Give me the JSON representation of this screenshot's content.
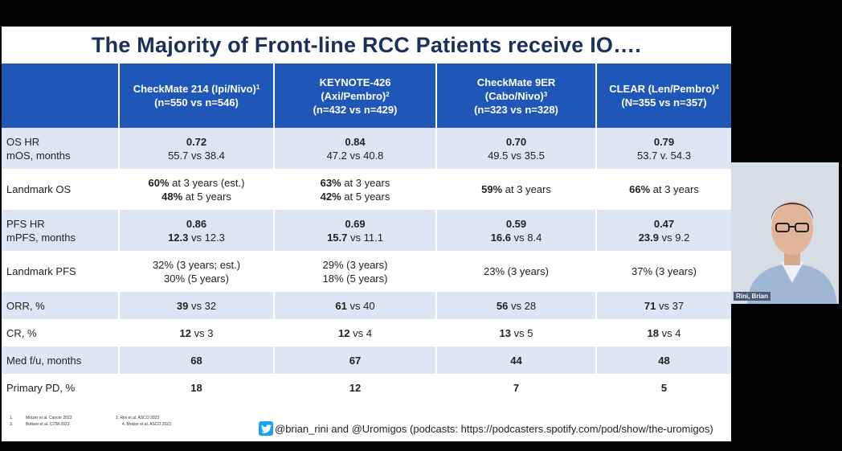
{
  "slide": {
    "title": "The Majority of Front-line RCC Patients receive IO….",
    "columns": [
      {
        "line1": "CheckMate 214 (Ipi/Nivo)",
        "sup": "1",
        "line2": "(n=550 vs n=546)"
      },
      {
        "line1": "KEYNOTE-426",
        "line2": "(Axi/Pembro)",
        "sup": "2",
        "line3": "(n=432 vs n=429)"
      },
      {
        "line1": "CheckMate 9ER",
        "line2": "(Cabo/Nivo)",
        "sup": "3",
        "line3": "(n=323 vs n=328)"
      },
      {
        "line1": "CLEAR (Len/Pembro)",
        "sup": "4",
        "line2": "(N=355 vs n=357)"
      }
    ],
    "rows": [
      {
        "label1": "OS HR",
        "label2": "mOS, months",
        "cells": [
          {
            "b1": "0.72",
            "t2": "55.7 vs 38.4"
          },
          {
            "b1": "0.84",
            "t2": "47.2 vs 40.8"
          },
          {
            "b1": "0.70",
            "t2": "49.5 vs 35.5"
          },
          {
            "b1": "0.79",
            "t2": "53.7 v. 54.3"
          }
        ]
      },
      {
        "label1": "Landmark OS",
        "cells": [
          {
            "b1": "60%",
            "t1": " at 3 years (est.)",
            "b2": "48%",
            "t2": " at 5 years"
          },
          {
            "b1": "63%",
            "t1": " at 3 years",
            "b2": "42%",
            "t2": " at 5 years"
          },
          {
            "b1": "59%",
            "t1": " at 3 years"
          },
          {
            "b1": "66%",
            "t1": " at 3 years"
          }
        ]
      },
      {
        "label1": "PFS HR",
        "label2": "mPFS, months",
        "cells": [
          {
            "b1": "0.86",
            "b2": "12.3",
            "t2": " vs 12.3"
          },
          {
            "b1": "0.69",
            "b2": "15.7",
            "t2": " vs 11.1"
          },
          {
            "b1": "0.59",
            "b2": "16.6",
            "t2": " vs 8.4"
          },
          {
            "b1": "0.47",
            "b2": "23.9",
            "t2": " vs 9.2"
          }
        ]
      },
      {
        "label1": "Landmark PFS",
        "cells": [
          {
            "t1": "32% (3 years; est.)",
            "t2": "30% (5 years)"
          },
          {
            "t1": "29% (3 years)",
            "t2": "18% (5 years)"
          },
          {
            "t1": "23% (3 years)"
          },
          {
            "t1": "37% (3 years)"
          }
        ]
      },
      {
        "label1": "ORR, %",
        "cells": [
          {
            "b1": "39",
            "t1": " vs 32"
          },
          {
            "b1": "61",
            "t1": " vs 40"
          },
          {
            "b1": "56",
            "t1": " vs 28"
          },
          {
            "b1": "71",
            "t1": " vs 37"
          }
        ]
      },
      {
        "label1": "CR, %",
        "cells": [
          {
            "b1": "12",
            "t1": " vs 3"
          },
          {
            "b1": "12",
            "t1": " vs 4"
          },
          {
            "b1": "13",
            "t1": " vs 5"
          },
          {
            "b1": "18",
            "t1": " vs 4"
          }
        ]
      },
      {
        "label1": "Med f/u, months",
        "cells": [
          {
            "b1": "68"
          },
          {
            "b1": "67"
          },
          {
            "b1": "44"
          },
          {
            "b1": "48"
          }
        ]
      },
      {
        "label1": "Primary PD, %",
        "cells": [
          {
            "b1": "18"
          },
          {
            "b1": "12"
          },
          {
            "b1": "7"
          },
          {
            "b1": "5"
          }
        ]
      }
    ],
    "footnotes": [
      "1.",
      "Motzer et al. Cancer 2022",
      "2. Rini et al. ASCO 2023",
      "3.",
      "Bottaro et al. CITM 2023",
      "4. Motzer et al. ASCO 2023"
    ],
    "social_text": "@brian_rini and @Uromigos (podcasts: https://podcasters.spotify.com/pod/show/the-uromigos)"
  },
  "webcam": {
    "name": "Rini, Brian"
  },
  "icons": {
    "twitter": "twitter-bird-icon"
  },
  "colors": {
    "header_blue": "#1f57b8",
    "row_shade": "#dce6f4",
    "title": "#1a2f5a",
    "twitter": "#1da1f2"
  }
}
